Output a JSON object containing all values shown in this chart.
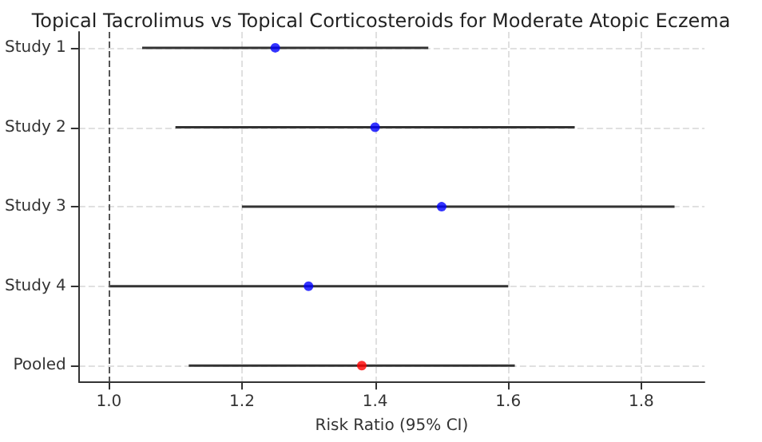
{
  "chart_data": {
    "type": "scatter",
    "title": "Topical Tacrolimus vs Topical Corticosteroids for Moderate Atopic Eczema",
    "xlabel": "Risk Ratio (95% CI)",
    "orientation": "horizontal",
    "categories": [
      "Study 1",
      "Study 2",
      "Study 3",
      "Study 4",
      "Pooled"
    ],
    "values": [
      1.25,
      1.4,
      1.5,
      1.3,
      1.38
    ],
    "errors": [
      [
        1.05,
        1.48
      ],
      [
        1.1,
        1.7
      ],
      [
        1.2,
        1.85
      ],
      [
        1.0,
        1.6
      ],
      [
        1.12,
        1.61
      ]
    ],
    "colors": [
      "#0000ff",
      "#0000ff",
      "#0000ff",
      "#0000ff",
      "#ff0000"
    ],
    "xlim": [
      0.955,
      1.895
    ],
    "xticks": [
      {
        "value": 1.0,
        "label": "1.0"
      },
      {
        "value": 1.2,
        "label": "1.2"
      },
      {
        "value": 1.4,
        "label": "1.4"
      },
      {
        "value": 1.6,
        "label": "1.6"
      },
      {
        "value": 1.8,
        "label": "1.8"
      }
    ],
    "ref_lines": [
      {
        "axis": "x",
        "value": 1.0,
        "color": "#555555",
        "line_style": "dashed"
      }
    ],
    "grid": true,
    "marker": "circle"
  }
}
